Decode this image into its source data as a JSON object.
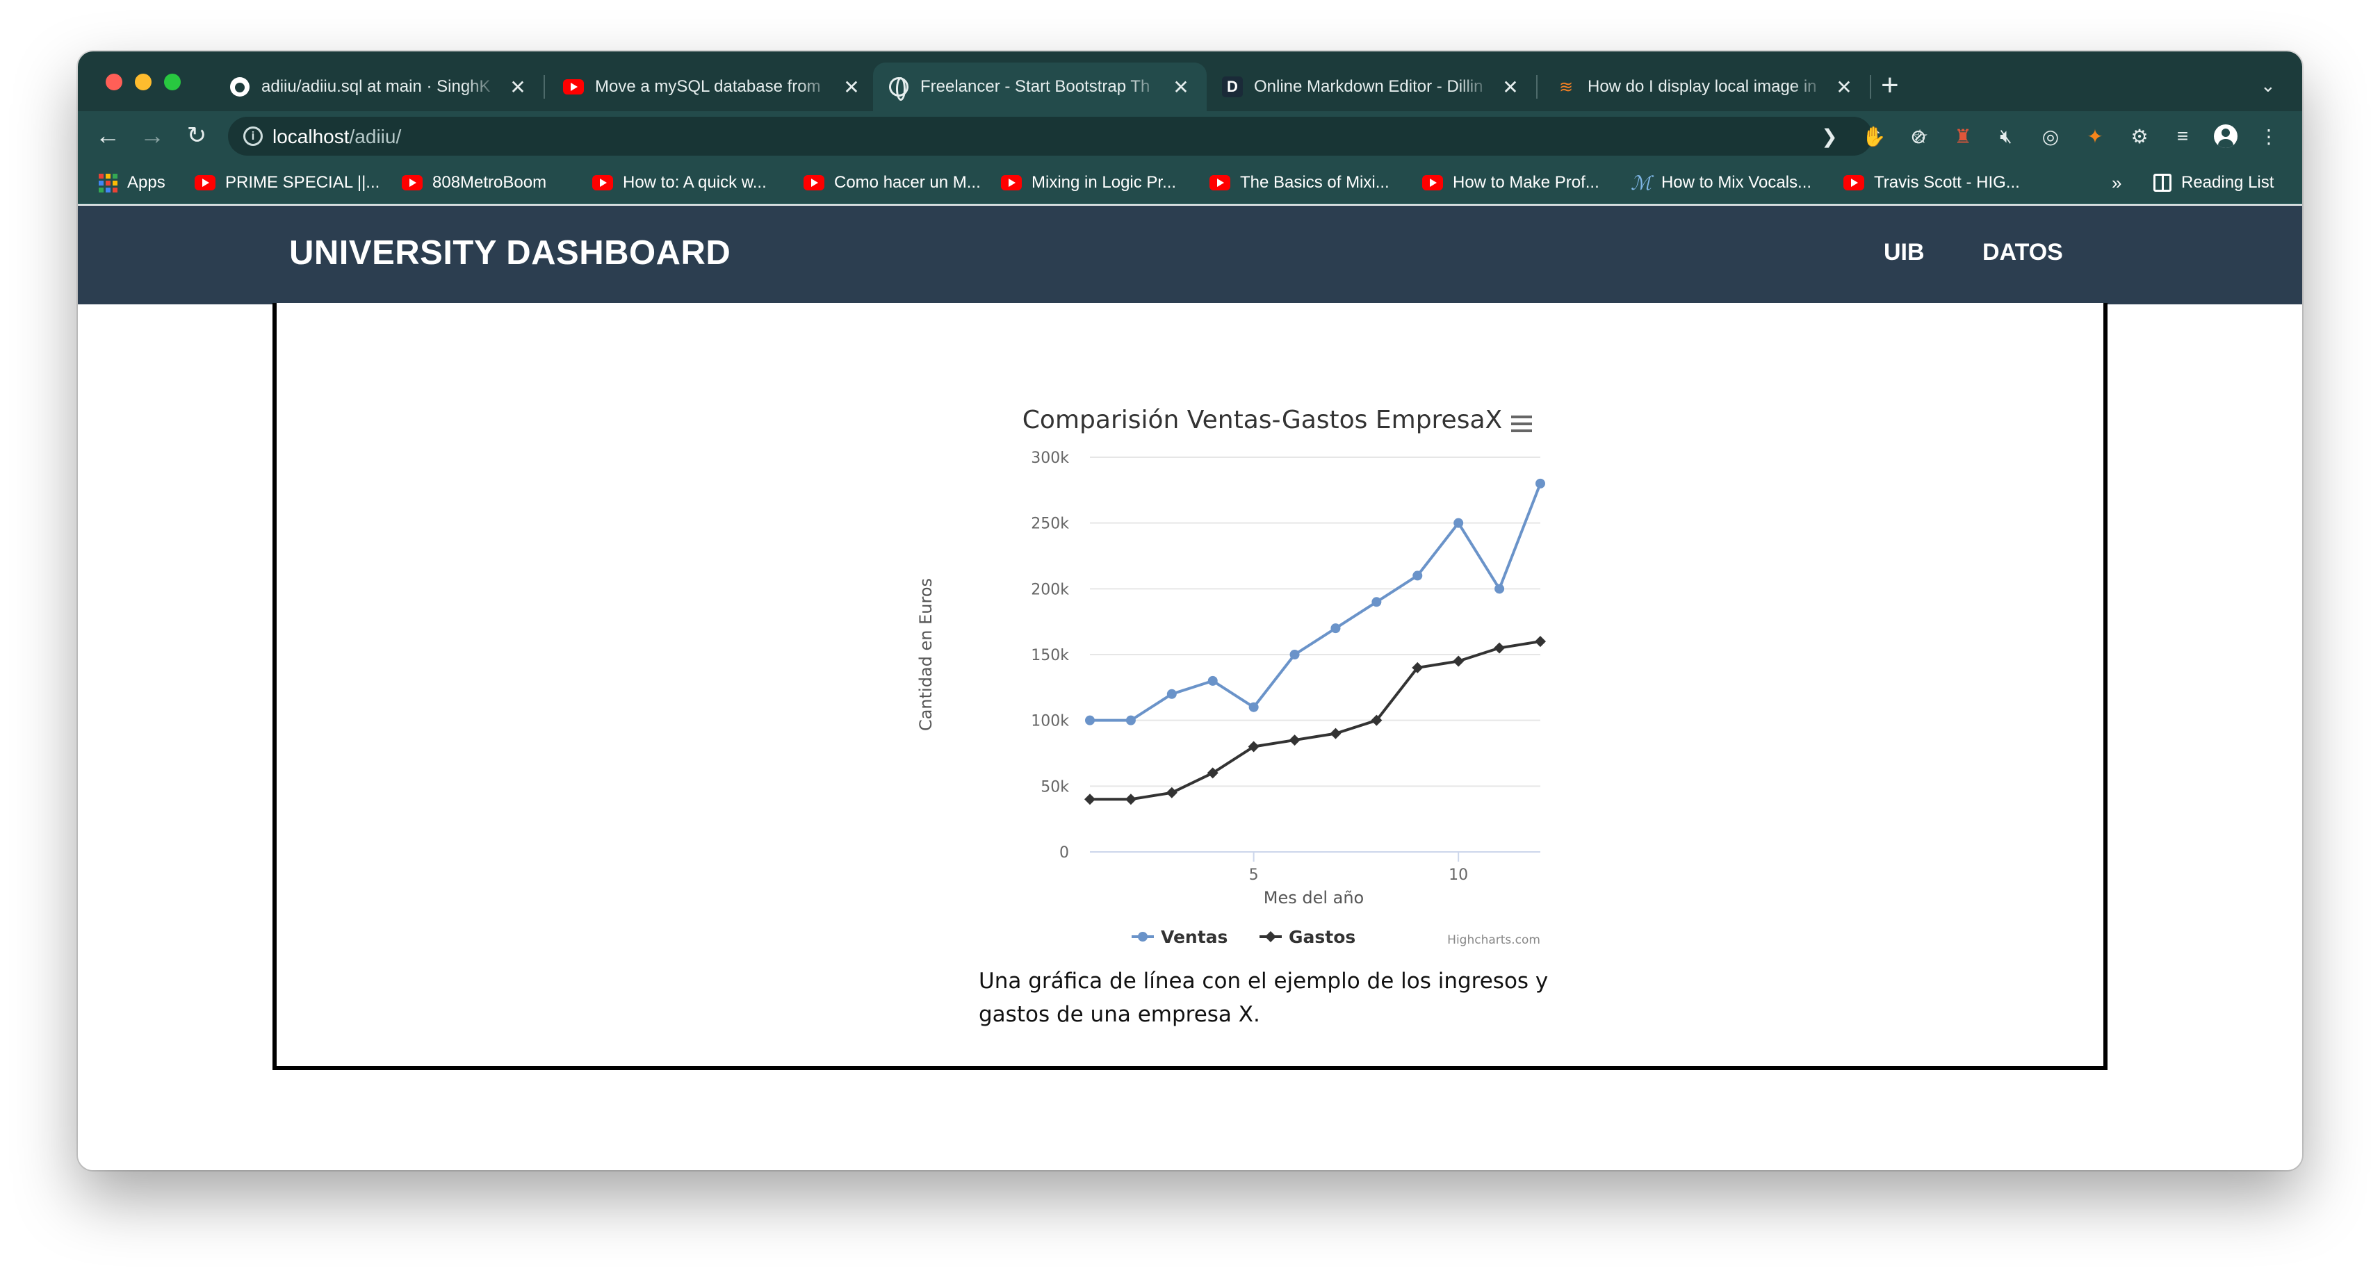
{
  "browser": {
    "tabs": [
      {
        "title": "adiiu/adiiu.sql at main · SinghK",
        "icon": "github-icon",
        "active": false
      },
      {
        "title": "Move a mySQL database from",
        "icon": "youtube-icon",
        "active": false
      },
      {
        "title": "Freelancer - Start Bootstrap Th",
        "icon": "globe-icon",
        "active": true
      },
      {
        "title": "Online Markdown Editor - Dillin",
        "icon": "dillinger-icon",
        "active": false
      },
      {
        "title": "How do I display local image in",
        "icon": "stackoverflow-icon",
        "active": false
      }
    ],
    "new_tab_symbol": "+",
    "tab_menu_symbol": "⌄",
    "url_host": "localhost",
    "url_path": "/adiiu/",
    "bookmarks": [
      {
        "label": "Apps",
        "icon": "apps-grid-icon"
      },
      {
        "label": "PRIME SPECIAL ||...",
        "icon": "youtube-icon"
      },
      {
        "label": "808MetroBoom",
        "icon": "youtube-icon"
      },
      {
        "label": "How to: A quick w...",
        "icon": "youtube-icon"
      },
      {
        "label": "Como hacer un M...",
        "icon": "youtube-icon"
      },
      {
        "label": "Mixing in Logic Pr...",
        "icon": "youtube-icon"
      },
      {
        "label": "The Basics of Mixi...",
        "icon": "youtube-icon"
      },
      {
        "label": "How to Make Prof...",
        "icon": "youtube-icon"
      },
      {
        "label": "How to Mix Vocals...",
        "icon": "m-script-icon"
      },
      {
        "label": "Travis Scott - HIG...",
        "icon": "youtube-icon"
      }
    ],
    "bookmarks_overflow": "»",
    "reading_list": "Reading List"
  },
  "site": {
    "brand": "UNIVERSITY DASHBOARD",
    "nav": [
      "UIB",
      "DATOS"
    ],
    "caption": "Una gráfica de línea con el ejemplo de los ingresos y gastos de una empresa X."
  },
  "chart_data": {
    "type": "line",
    "title": "Comparisión Ventas-Gastos EmpresaX",
    "xlabel": "Mes del año",
    "ylabel": "Cantidad en Euros",
    "x": [
      1,
      2,
      3,
      4,
      5,
      6,
      7,
      8,
      9,
      10,
      11,
      12
    ],
    "x_ticks": [
      5,
      10
    ],
    "y_ticks": [
      0,
      50000,
      100000,
      150000,
      200000,
      250000,
      300000
    ],
    "y_tick_labels": [
      "0",
      "50k",
      "100k",
      "150k",
      "200k",
      "250k",
      "300k"
    ],
    "ylim": [
      0,
      300000
    ],
    "xlim": [
      1,
      12
    ],
    "grid": "horizontal",
    "legend_position": "bottom-center",
    "credits": "Highcharts.com",
    "series": [
      {
        "name": "Ventas",
        "color": "#6a93c9",
        "marker": "circle",
        "values": [
          100000,
          100000,
          120000,
          130000,
          110000,
          150000,
          170000,
          190000,
          210000,
          250000,
          200000,
          280000
        ]
      },
      {
        "name": "Gastos",
        "color": "#333333",
        "marker": "diamond",
        "values": [
          40000,
          40000,
          45000,
          60000,
          80000,
          85000,
          90000,
          100000,
          140000,
          145000,
          155000,
          160000
        ]
      }
    ]
  }
}
